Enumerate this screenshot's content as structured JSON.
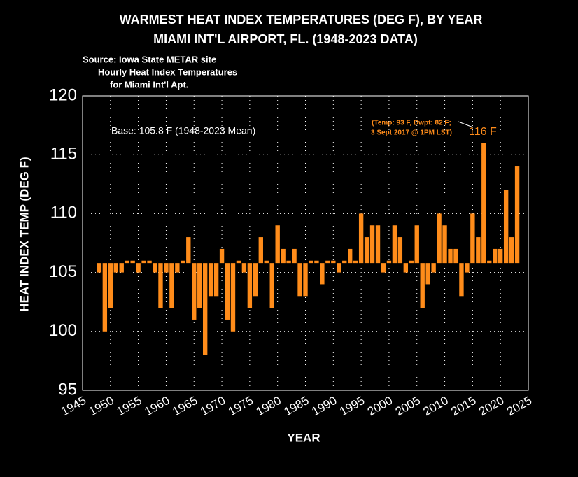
{
  "chart_data": {
    "type": "bar",
    "title": [
      "WARMEST HEAT INDEX TEMPERATURES (DEG F), BY YEAR",
      "MIAMI INT'L AIRPORT, FL.  (1948-2023 DATA)"
    ],
    "source": [
      "Source: Iowa State METAR site",
      "Hourly Heat Index Temperatures",
      "for Miami Int'l Apt."
    ],
    "base_label": "Base: 105.8 F (1948-2023 Mean)",
    "base": 105.8,
    "annotations": [
      "(Temp: 93 F, Dwpt: 82 F;",
      "3 Sept 2017 @ 1PM LST)",
      "116 F"
    ],
    "x_label": "YEAR",
    "y_label": "HEAT INDEX TEMP (DEG F)",
    "x": [
      1948,
      1949,
      1950,
      1951,
      1952,
      1953,
      1954,
      1955,
      1956,
      1957,
      1958,
      1959,
      1960,
      1961,
      1962,
      1963,
      1964,
      1965,
      1966,
      1967,
      1968,
      1969,
      1970,
      1971,
      1972,
      1973,
      1974,
      1975,
      1976,
      1977,
      1978,
      1979,
      1980,
      1981,
      1982,
      1983,
      1984,
      1985,
      1986,
      1987,
      1988,
      1989,
      1990,
      1991,
      1992,
      1993,
      1994,
      1995,
      1996,
      1997,
      1998,
      1999,
      2000,
      2001,
      2002,
      2003,
      2004,
      2005,
      2006,
      2007,
      2008,
      2009,
      2010,
      2011,
      2012,
      2013,
      2014,
      2015,
      2016,
      2017,
      2018,
      2019,
      2020,
      2021,
      2022,
      2023
    ],
    "values": [
      105,
      100,
      102,
      105,
      105,
      106,
      106,
      105,
      106,
      106,
      105,
      102,
      105,
      102,
      105,
      106,
      108,
      101,
      102,
      98,
      103,
      103,
      107,
      101,
      100,
      106,
      105,
      102,
      103,
      108,
      106,
      102,
      109,
      107,
      106,
      107,
      103,
      103,
      106,
      106,
      104,
      106,
      106,
      105,
      106,
      107,
      106,
      110,
      108,
      109,
      109,
      105,
      106,
      109,
      108,
      105,
      106,
      109,
      102,
      104,
      105,
      110,
      109,
      107,
      107,
      103,
      105,
      110,
      108,
      116,
      106,
      107,
      107,
      112,
      108,
      114
    ],
    "color": "#ff8c1a",
    "xlim": [
      1945,
      2025
    ],
    "xticks": [
      1945,
      1950,
      1955,
      1960,
      1965,
      1970,
      1975,
      1980,
      1985,
      1990,
      1995,
      2000,
      2005,
      2010,
      2015,
      2020,
      2025
    ],
    "ylim": [
      95,
      120
    ],
    "yticks": [
      95,
      100,
      105,
      110,
      115,
      120
    ],
    "grid": true
  }
}
